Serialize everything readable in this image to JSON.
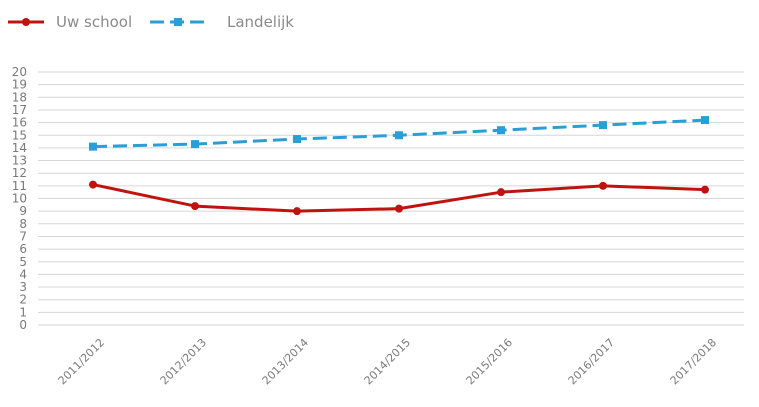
{
  "chart_data": {
    "type": "line",
    "title": "",
    "xlabel": "",
    "ylabel": "",
    "categories": [
      "2011/2012",
      "2012/2013",
      "2013/2014",
      "2014/2015",
      "2015/2016",
      "2016/2017",
      "2017/2018"
    ],
    "y_ticks": [
      "0",
      "1",
      "2",
      "3",
      "4",
      "5",
      "6",
      "7",
      "8",
      "9",
      "10",
      "11",
      "12",
      "13",
      "14",
      "15",
      "16",
      "17",
      "18",
      "19",
      "20"
    ],
    "ylim": [
      0,
      20
    ],
    "grid": true,
    "legend_position": "top-left",
    "series": [
      {
        "name": "Uw school",
        "values": [
          11.1,
          9.4,
          9.0,
          9.2,
          10.5,
          11.0,
          10.7
        ],
        "color": "#c0130f",
        "marker": "circle",
        "line_style": "solid"
      },
      {
        "name": "Landelijk",
        "values": [
          14.1,
          14.3,
          14.7,
          15.0,
          15.4,
          15.8,
          16.2
        ],
        "color": "#2a9fd6",
        "marker": "square",
        "line_style": "dashed"
      }
    ]
  },
  "colors": {
    "grid": "#d6d6d6",
    "axis_text": "#7a7a7a"
  }
}
